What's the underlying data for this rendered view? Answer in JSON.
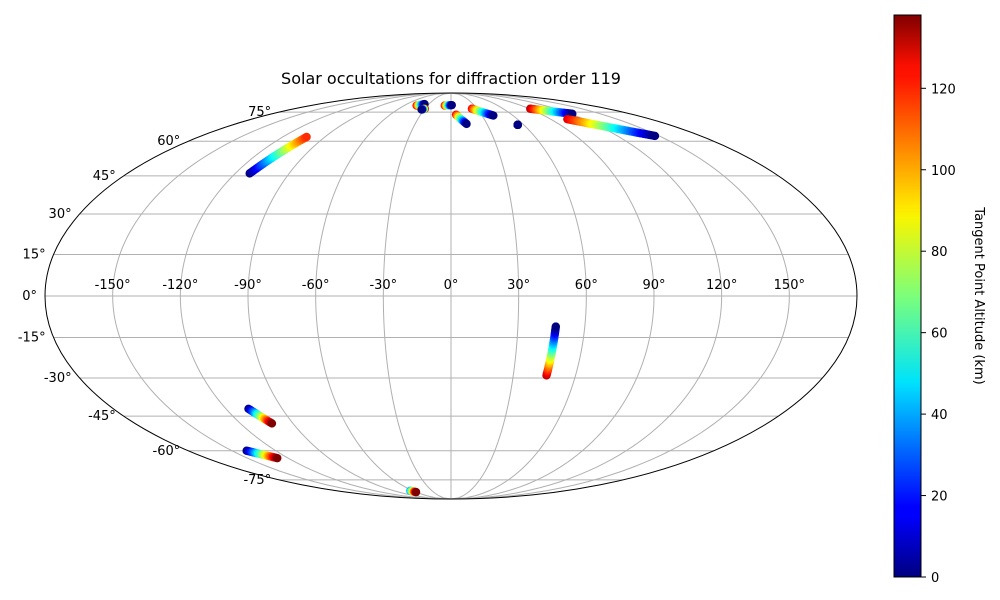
{
  "chart_data": {
    "type": "scatter",
    "projection": "mollweide",
    "title": "Solar occultations for diffraction order 119",
    "xlabel": "",
    "ylabel": "",
    "lon_ticks": [
      -150,
      -120,
      -90,
      -60,
      -30,
      0,
      30,
      60,
      90,
      120,
      150
    ],
    "lon_tick_labels": [
      "-150°",
      "-120°",
      "-90°",
      "-60°",
      "-30°",
      "0°",
      "30°",
      "60°",
      "90°",
      "120°",
      "150°"
    ],
    "lat_ticks": [
      -75,
      -60,
      -45,
      -30,
      -15,
      0,
      15,
      30,
      45,
      60,
      75
    ],
    "lat_tick_labels": [
      "-75°",
      "-60°",
      "-45°",
      "-30°",
      "-15°",
      "0°",
      "15°",
      "30°",
      "45°",
      "60°",
      "75°"
    ],
    "grid": true,
    "colorbar": {
      "label": "Tangent Point Altitude (km)",
      "colormap": "jet",
      "range": [
        0,
        138
      ],
      "ticks": [
        0,
        20,
        40,
        60,
        80,
        100,
        120
      ],
      "tick_labels": [
        "0",
        "20",
        "40",
        "60",
        "80",
        "100",
        "120"
      ]
    },
    "tracks": [
      {
        "start": {
          "lon": -112,
          "lat": 46,
          "alt": 0
        },
        "end": {
          "lon": -103,
          "lat": 62,
          "alt": 115
        }
      },
      {
        "start": {
          "lon": -44,
          "lat": 79,
          "alt": 120
        },
        "end": {
          "lon": -36,
          "lat": 80,
          "alt": 0
        }
      },
      {
        "start": {
          "lon": -30,
          "lat": 77,
          "alt": 130
        },
        "end": {
          "lon": -33,
          "lat": 76.5,
          "alt": 0
        }
      },
      {
        "start": {
          "lon": -8,
          "lat": 79,
          "alt": 120
        },
        "end": {
          "lon": 1,
          "lat": 79.3,
          "alt": 0
        }
      },
      {
        "start": {
          "lon": 5,
          "lat": 73.5,
          "alt": 120
        },
        "end": {
          "lon": 13,
          "lat": 68.5,
          "alt": 0
        }
      },
      {
        "start": {
          "lon": 24,
          "lat": 77,
          "alt": 120
        },
        "end": {
          "lon": 41,
          "lat": 73,
          "alt": 0
        }
      },
      {
        "start": {
          "lon": 55,
          "lat": 68,
          "alt": 0
        },
        "end": {
          "lon": 55,
          "lat": 68,
          "alt": 0
        }
      },
      {
        "start": {
          "lon": 91,
          "lat": 77,
          "alt": 130
        },
        "end": {
          "lon": 122,
          "lat": 74,
          "alt": 0
        }
      },
      {
        "start": {
          "lon": 105,
          "lat": 71,
          "alt": 125
        },
        "end": {
          "lon": 147,
          "lat": 62.5,
          "alt": 0
        }
      },
      {
        "start": {
          "lon": 46,
          "lat": -29,
          "alt": 130
        },
        "end": {
          "lon": 47,
          "lat": -11,
          "alt": 0
        }
      },
      {
        "start": {
          "lon": -108,
          "lat": -42,
          "alt": 0
        },
        "end": {
          "lon": -102,
          "lat": -48,
          "alt": 138
        }
      },
      {
        "start": {
          "lon": -140,
          "lat": -60,
          "alt": 0
        },
        "end": {
          "lon": -128,
          "lat": -63.5,
          "alt": 138
        }
      },
      {
        "start": {
          "lon": -64,
          "lat": -82,
          "alt": 40
        },
        "end": {
          "lon": -60,
          "lat": -83,
          "alt": 138
        }
      }
    ]
  }
}
